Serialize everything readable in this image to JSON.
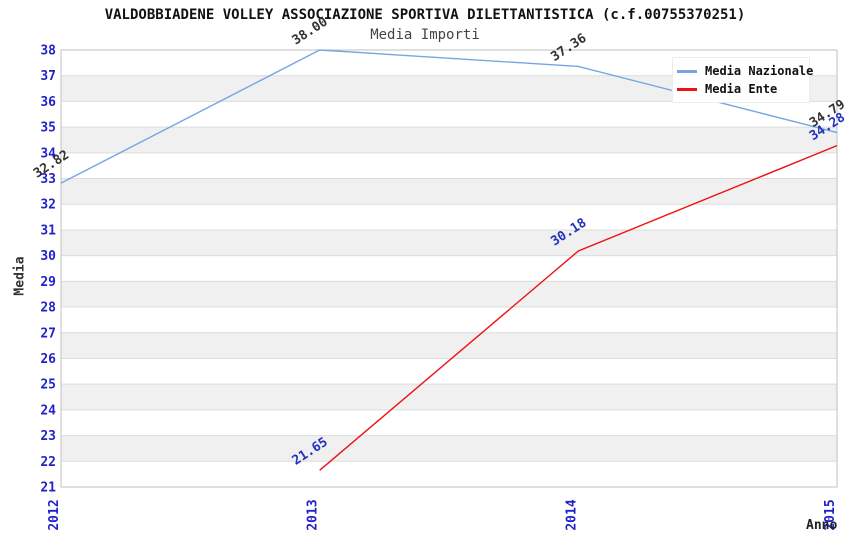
{
  "chart_data": {
    "type": "line",
    "title": "VALDOBBIADENE VOLLEY ASSOCIAZIONE SPORTIVA DILETTANTISTICA (c.f.00755370251)",
    "subtitle": "Media Importi",
    "xlabel": "Anno",
    "ylabel": "Media",
    "x": [
      "2012",
      "2013",
      "2014",
      "2015"
    ],
    "ylim": [
      21,
      38
    ],
    "ytick_step": 1,
    "grid": "alternating-horizontal-bands",
    "legend_position": "top-right",
    "series": [
      {
        "name": "Media Nazionale",
        "color": "#76a6e2",
        "label_color": "#333333",
        "values": [
          32.82,
          38.0,
          37.36,
          34.79
        ],
        "labels": [
          "32.82",
          "38.00",
          "37.36",
          "34.79"
        ]
      },
      {
        "name": "Media Ente",
        "color": "#ee1111",
        "label_color": "#2233bb",
        "values": [
          null,
          21.65,
          30.18,
          34.28
        ],
        "labels": [
          null,
          "21.65",
          "30.18",
          "34.28"
        ]
      }
    ],
    "colors": {
      "band": "#f0f0f0",
      "grid_line": "#dcdcdc",
      "frame": "#c0c0c0",
      "tick_label": "#2222cc",
      "background": "#ffffff"
    }
  }
}
